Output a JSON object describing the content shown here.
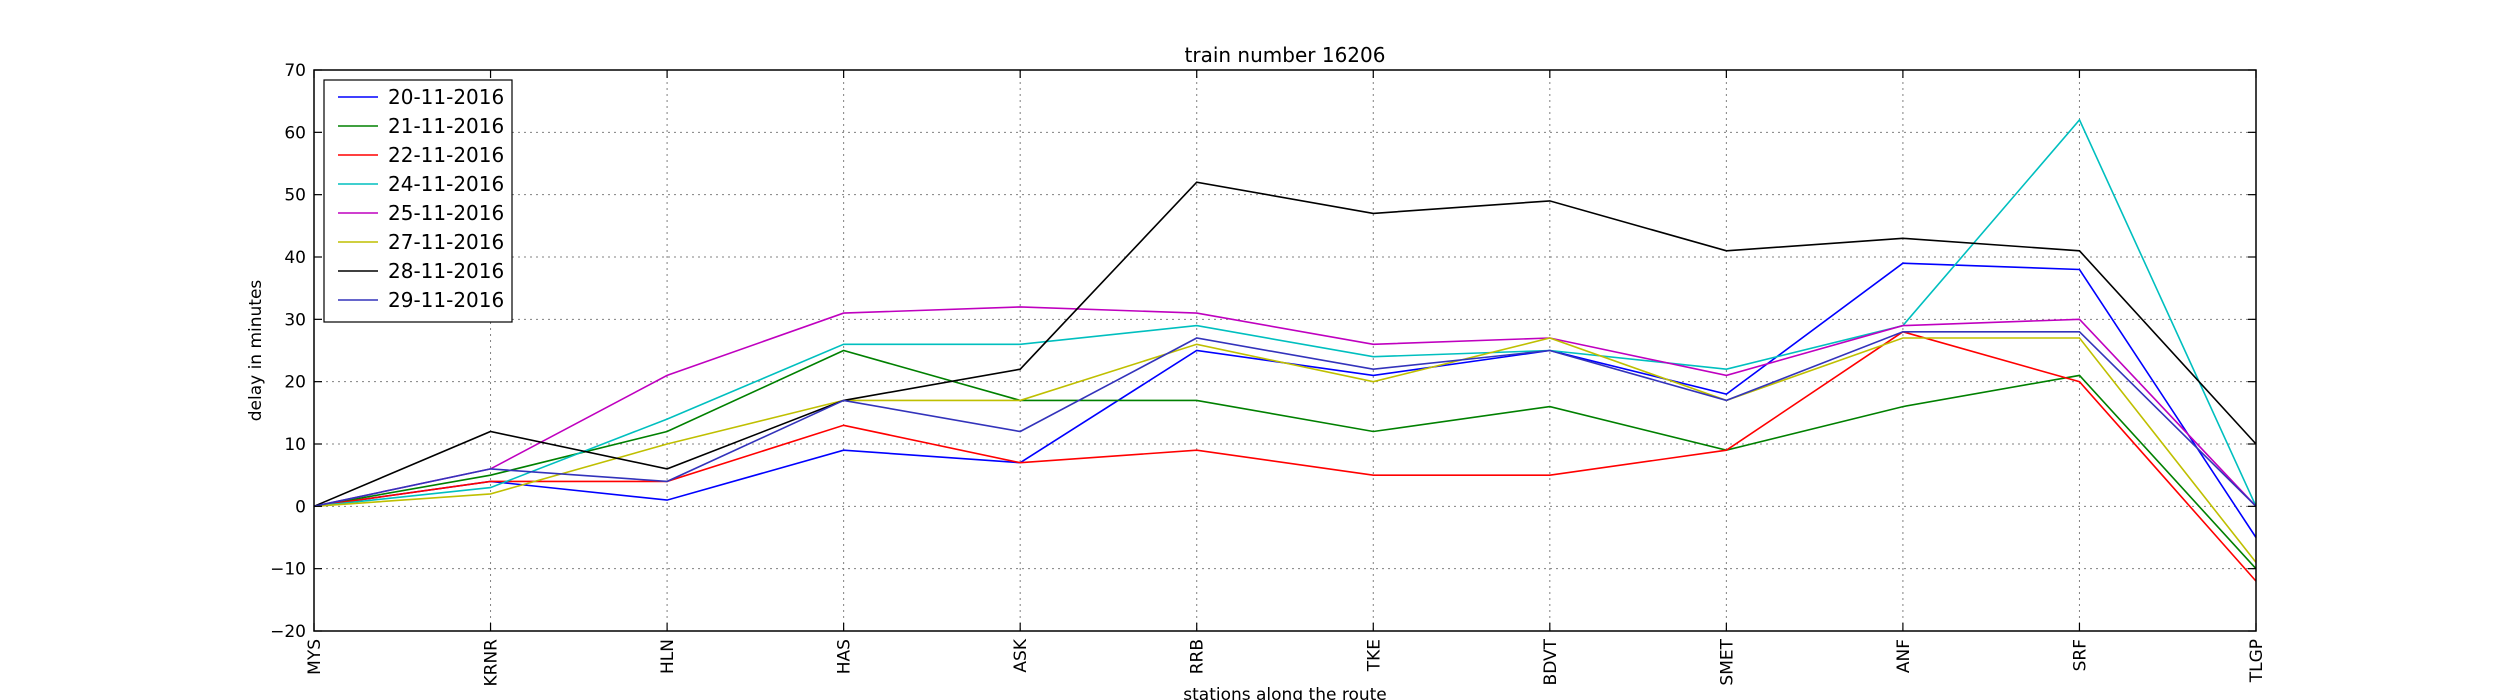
{
  "chart_data": {
    "type": "line",
    "title": "train number 16206",
    "xlabel": "stations along the route",
    "ylabel": "delay in minutes",
    "categories": [
      "MYS",
      "KRNR",
      "HLN",
      "HAS",
      "ASK",
      "RRB",
      "TKE",
      "BDVT",
      "SMET",
      "ANF",
      "SRF",
      "TLGP"
    ],
    "ylim": [
      -20,
      70
    ],
    "yticks": [
      -20,
      -10,
      0,
      10,
      20,
      30,
      40,
      50,
      60,
      70
    ],
    "ytick_labels": [
      "−20",
      "−10",
      "0",
      "10",
      "20",
      "30",
      "40",
      "50",
      "60",
      "70"
    ],
    "grid": true,
    "legend_position": "top-left",
    "series": [
      {
        "name": "20-11-2016",
        "color": "#0000ff",
        "values": [
          0,
          4,
          1,
          9,
          7,
          25,
          21,
          25,
          18,
          39,
          38,
          -5
        ]
      },
      {
        "name": "21-11-2016",
        "color": "#008000",
        "values": [
          0,
          5,
          12,
          25,
          17,
          17,
          12,
          16,
          9,
          16,
          21,
          -10
        ]
      },
      {
        "name": "22-11-2016",
        "color": "#ff0000",
        "values": [
          0,
          4,
          4,
          13,
          7,
          9,
          5,
          5,
          9,
          28,
          20,
          -12
        ]
      },
      {
        "name": "24-11-2016",
        "color": "#00bfbf",
        "values": [
          0,
          3,
          14,
          26,
          26,
          29,
          24,
          25,
          22,
          29,
          62,
          0
        ]
      },
      {
        "name": "25-11-2016",
        "color": "#bf00bf",
        "values": [
          0,
          6,
          21,
          31,
          32,
          31,
          26,
          27,
          21,
          29,
          30,
          0
        ]
      },
      {
        "name": "27-11-2016",
        "color": "#bfbf00",
        "values": [
          0,
          2,
          10,
          17,
          17,
          26,
          20,
          27,
          17,
          27,
          27,
          -9
        ]
      },
      {
        "name": "28-11-2016",
        "color": "#000000",
        "values": [
          0,
          12,
          6,
          17,
          22,
          52,
          47,
          49,
          41,
          43,
          41,
          10
        ]
      },
      {
        "name": "29-11-2016",
        "color": "#3333bb",
        "values": [
          0,
          6,
          4,
          17,
          12,
          27,
          22,
          25,
          17,
          28,
          28,
          0
        ]
      }
    ]
  }
}
